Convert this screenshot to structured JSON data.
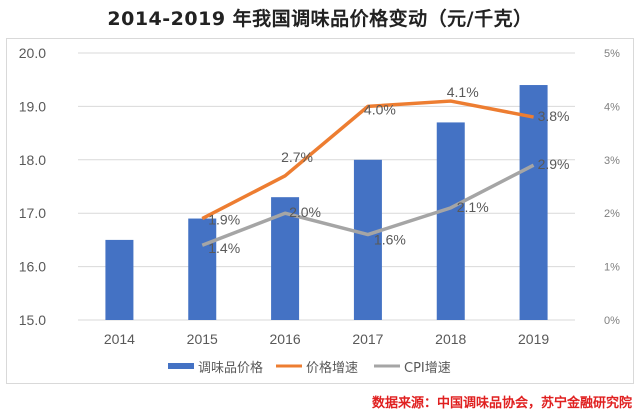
{
  "title": "2014-2019 年我国调味品价格变动（元/千克）",
  "source": "数据来源：中国调味品协会，苏宁金融研究院",
  "colors": {
    "bar": "#4472c4",
    "price_growth": "#ed7d31",
    "cpi": "#a5a5a5",
    "source_text": "#e02020"
  },
  "chart_data": {
    "type": "bar",
    "title": "2014-2019 年我国调味品价格变动（元/千克）",
    "categories": [
      "2014",
      "2015",
      "2016",
      "2017",
      "2018",
      "2019"
    ],
    "ylim": [
      15.0,
      20.0
    ],
    "yticks": [
      "15.0",
      "16.0",
      "17.0",
      "18.0",
      "19.0",
      "20.0"
    ],
    "y2lim": [
      0,
      5
    ],
    "y2ticks": [
      "0%",
      "1%",
      "2%",
      "3%",
      "4%",
      "5%"
    ],
    "grid": true,
    "legend_position": "bottom",
    "series": [
      {
        "name": "调味品价格",
        "type": "bar",
        "axis": "left",
        "values": [
          16.5,
          16.9,
          17.3,
          18.0,
          18.7,
          19.4
        ]
      },
      {
        "name": "价格增速",
        "type": "line",
        "axis": "right",
        "values": [
          null,
          1.9,
          2.7,
          4.0,
          4.1,
          3.8
        ],
        "labels": [
          null,
          "1.9%",
          "2.7%",
          "4.0%",
          "4.1%",
          "3.8%"
        ]
      },
      {
        "name": "CPI增速",
        "type": "line",
        "axis": "right",
        "values": [
          null,
          1.4,
          2.0,
          1.6,
          2.1,
          2.9
        ],
        "labels": [
          null,
          "1.4%",
          "2.0%",
          "1.6%",
          "2.1%",
          "2.9%"
        ]
      }
    ]
  }
}
